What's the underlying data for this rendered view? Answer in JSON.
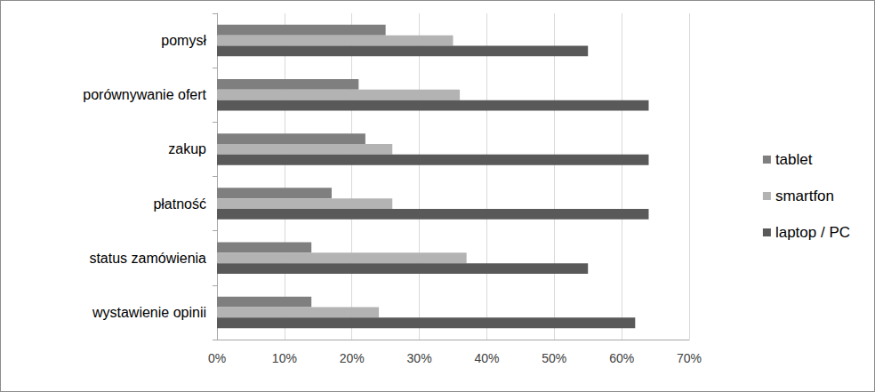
{
  "chart_data": {
    "type": "bar",
    "orientation": "horizontal",
    "categories": [
      "pomysł",
      "porównywanie ofert",
      "zakup",
      "płatność",
      "status zamówienia",
      "wystawienie opinii"
    ],
    "series": [
      {
        "name": "tablet",
        "color": "#7f7f7f",
        "values": [
          25,
          21,
          22,
          17,
          14,
          14
        ]
      },
      {
        "name": "smartfon",
        "color": "#b3b3b3",
        "values": [
          35,
          36,
          26,
          26,
          37,
          24
        ]
      },
      {
        "name": "laptop / PC",
        "color": "#595959",
        "values": [
          55,
          64,
          64,
          64,
          55,
          62
        ]
      }
    ],
    "xlim": [
      0,
      70
    ],
    "xticks": [
      {
        "value": 0,
        "label": "0%"
      },
      {
        "value": 10,
        "label": "10%"
      },
      {
        "value": 20,
        "label": "20%"
      },
      {
        "value": 30,
        "label": "30%"
      },
      {
        "value": 40,
        "label": "40%"
      },
      {
        "value": 50,
        "label": "50%"
      },
      {
        "value": 60,
        "label": "60%"
      },
      {
        "value": 70,
        "label": "70%"
      }
    ],
    "grid": true,
    "legend": "right"
  }
}
